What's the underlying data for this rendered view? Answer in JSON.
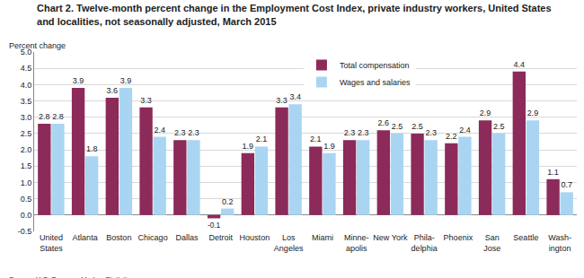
{
  "chart_data": {
    "type": "bar",
    "title": "Chart 2. Twelve-month percent change in the Employment Cost Index, private industry workers, United States\nand localities, not seasonally adjusted, March 2015",
    "ylabel": "Percent change",
    "source": "Source: U.S. Bureau of Labor Statistics.",
    "categories": [
      "United\nStates",
      "Atlanta",
      "Boston",
      "Chicago",
      "Dallas",
      "Detroit",
      "Houston",
      "Los\nAngeles",
      "Miami",
      "Minne-\napolis",
      "New York",
      "Phila-\ndelphia",
      "Phoenix",
      "San\nJose",
      "Seattle",
      "Wash-\nington"
    ],
    "series": [
      {
        "name": "Total compensation",
        "color": "#8c2a5a",
        "values": [
          2.8,
          3.9,
          3.6,
          3.3,
          2.3,
          -0.1,
          1.9,
          3.3,
          2.1,
          2.3,
          2.6,
          2.5,
          2.2,
          2.9,
          4.4,
          1.1
        ]
      },
      {
        "name": "Wages and salaries",
        "color": "#a9d5f2",
        "values": [
          2.8,
          1.8,
          3.9,
          2.4,
          2.3,
          0.2,
          2.1,
          3.4,
          1.9,
          2.3,
          2.5,
          2.3,
          2.4,
          2.5,
          2.9,
          0.7
        ]
      }
    ],
    "ylim": [
      -0.5,
      5.0
    ],
    "yticks": [
      -0.5,
      {
        "value": 0,
        "label": "0.0"
      },
      0.5,
      {
        "value": 1,
        "label": "1.0"
      },
      1.5,
      {
        "value": 2,
        "label": "2.0"
      },
      2.5,
      {
        "value": 3,
        "label": "3.0"
      },
      3.5,
      {
        "value": 4,
        "label": "4.0"
      },
      4.5,
      {
        "value": 5,
        "label": "5.0"
      }
    ],
    "grid": true,
    "legend": "top",
    "data_labels": true
  }
}
